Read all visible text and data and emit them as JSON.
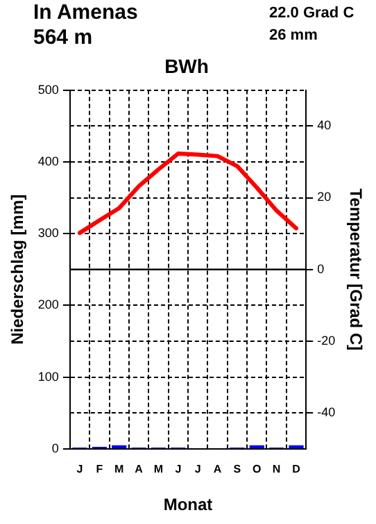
{
  "chart_data": {
    "type": "bar",
    "title": "BWh",
    "xlabel": "Monat",
    "ylabel": "Niederschlag [mm]",
    "y2label": "Temperatur [Grad C]",
    "annotations": [
      "In Amenas",
      "564 m",
      "22.0 Grad C",
      "26 mm"
    ],
    "categories": [
      "J",
      "F",
      "M",
      "A",
      "M",
      "J",
      "J",
      "A",
      "S",
      "O",
      "N",
      "D"
    ],
    "series": [
      {
        "color": "#0000ff",
        "values": [
          2,
          3,
          5,
          2,
          2,
          2,
          0,
          0,
          2,
          5,
          2,
          5
        ]
      },
      {
        "type": "line",
        "axis": "y2",
        "color": "#ff0000",
        "values": [
          10.2,
          13.7,
          17.1,
          23.2,
          27.9,
          32.3,
          32.0,
          31.6,
          28.8,
          22.8,
          16.4,
          11.5
        ]
      }
    ],
    "ylim": [
      0,
      500
    ],
    "yticks": [
      0,
      100,
      200,
      300,
      400,
      500
    ],
    "y2lim": [
      -50,
      50
    ],
    "y2ticks": [
      -40,
      -20,
      0,
      20,
      40
    ],
    "ref_lines": [
      {
        "axis": "y2",
        "value": 0
      }
    ],
    "grid": true,
    "marker": "none",
    "line_style": "solid",
    "legend": false
  }
}
